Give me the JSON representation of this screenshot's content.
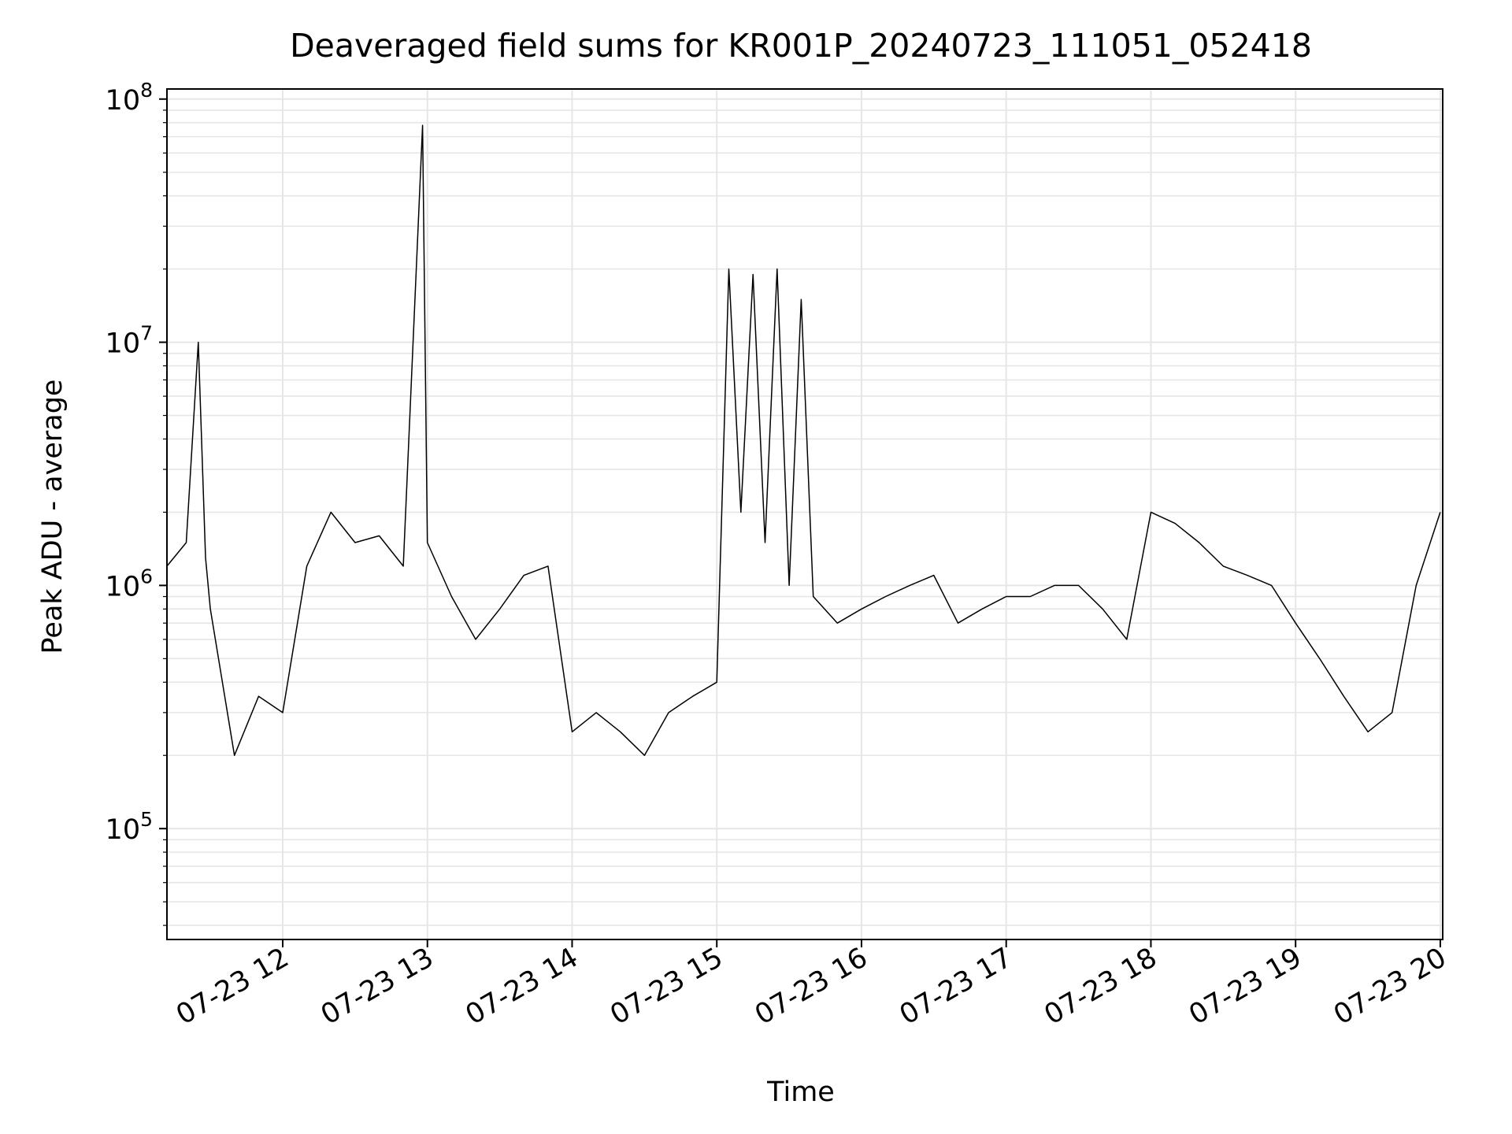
{
  "chart_data": {
    "type": "line",
    "title": "Deaveraged field sums for KR001P_20240723_111051_052418",
    "xlabel": "Time",
    "ylabel": "Peak ADU - average",
    "yscale": "log",
    "grid": true,
    "xlim": [
      "2024-07-23 11:12",
      "2024-07-23 20:01"
    ],
    "ylim": [
      35000,
      110000000
    ],
    "x_tick_labels": [
      "07-23 12",
      "07-23 13",
      "07-23 14",
      "07-23 15",
      "07-23 16",
      "07-23 17",
      "07-23 18",
      "07-23 19",
      "07-23 20"
    ],
    "y_tick_labels": [
      {
        "value": 100000,
        "base": "10",
        "exp": "5"
      },
      {
        "value": 1000000,
        "base": "10",
        "exp": "6"
      },
      {
        "value": 10000000,
        "base": "10",
        "exp": "7"
      },
      {
        "value": 100000000,
        "base": "10",
        "exp": "8"
      }
    ],
    "series_color": "#000000",
    "series": [
      {
        "x": [
          "2024-07-23 11:12",
          "2024-07-23 11:20",
          "2024-07-23 11:25",
          "2024-07-23 11:28",
          "2024-07-23 11:30",
          "2024-07-23 11:40",
          "2024-07-23 11:50",
          "2024-07-23 12:00",
          "2024-07-23 12:10",
          "2024-07-23 12:20",
          "2024-07-23 12:30",
          "2024-07-23 12:40",
          "2024-07-23 12:50",
          "2024-07-23 12:58",
          "2024-07-23 13:00",
          "2024-07-23 13:10",
          "2024-07-23 13:20",
          "2024-07-23 13:30",
          "2024-07-23 13:40",
          "2024-07-23 13:50",
          "2024-07-23 14:00",
          "2024-07-23 14:10",
          "2024-07-23 14:20",
          "2024-07-23 14:30",
          "2024-07-23 14:40",
          "2024-07-23 14:50",
          "2024-07-23 15:00",
          "2024-07-23 15:05",
          "2024-07-23 15:10",
          "2024-07-23 15:15",
          "2024-07-23 15:20",
          "2024-07-23 15:25",
          "2024-07-23 15:30",
          "2024-07-23 15:35",
          "2024-07-23 15:40",
          "2024-07-23 15:50",
          "2024-07-23 16:00",
          "2024-07-23 16:10",
          "2024-07-23 16:20",
          "2024-07-23 16:30",
          "2024-07-23 16:40",
          "2024-07-23 16:50",
          "2024-07-23 17:00",
          "2024-07-23 17:10",
          "2024-07-23 17:20",
          "2024-07-23 17:30",
          "2024-07-23 17:40",
          "2024-07-23 17:50",
          "2024-07-23 18:00",
          "2024-07-23 18:10",
          "2024-07-23 18:20",
          "2024-07-23 18:30",
          "2024-07-23 18:40",
          "2024-07-23 18:50",
          "2024-07-23 19:00",
          "2024-07-23 19:10",
          "2024-07-23 19:20",
          "2024-07-23 19:30",
          "2024-07-23 19:40",
          "2024-07-23 19:50",
          "2024-07-23 20:00"
        ],
        "y": [
          1200000,
          1500000,
          10000000,
          1300000,
          800000,
          200000,
          350000,
          300000,
          1200000,
          2000000,
          1500000,
          1600000,
          1200000,
          78000000,
          1500000,
          900000,
          600000,
          800000,
          1100000,
          1200000,
          250000,
          300000,
          250000,
          200000,
          300000,
          350000,
          400000,
          20000000,
          2000000,
          19000000,
          1500000,
          20000000,
          1000000,
          15000000,
          900000,
          700000,
          800000,
          900000,
          1000000,
          1100000,
          700000,
          800000,
          900000,
          900000,
          1000000,
          1000000,
          800000,
          600000,
          2000000,
          1800000,
          1500000,
          1200000,
          1100000,
          1000000,
          700000,
          500000,
          350000,
          250000,
          300000,
          1000000,
          2000000
        ]
      }
    ]
  }
}
